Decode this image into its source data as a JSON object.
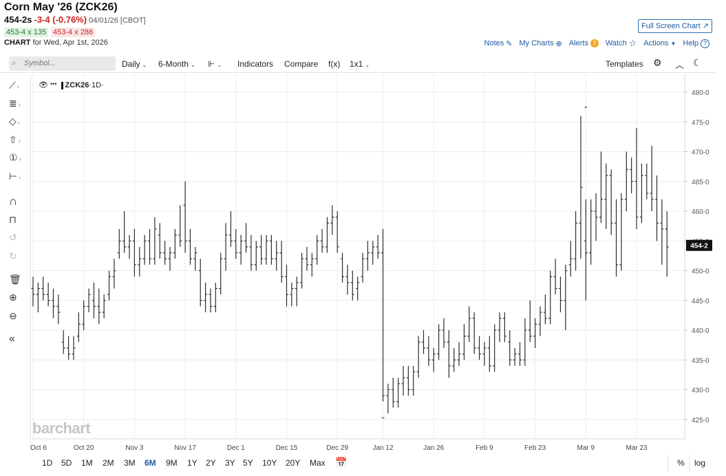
{
  "header": {
    "title": "Corn May '26 (ZCK26)",
    "last": "454-2s",
    "change": "-3-4 (-0.76%)",
    "date_exchange": "04/01/26 [CBOT]",
    "bid": "453-4 x 135",
    "ask": "453-4 x 286",
    "chart_label": "CHART",
    "chart_for": "for Wed, Apr 1st, 2026",
    "full_screen": "Full Screen Chart"
  },
  "toplinks": {
    "notes": "Notes",
    "my_charts": "My Charts",
    "alerts": "Alerts",
    "watch": "Watch",
    "actions": "Actions",
    "help": "Help"
  },
  "toolbar": {
    "symbol_placeholder": "Symbol...",
    "interval": "Daily",
    "range": "6-Month",
    "indicators": "Indicators",
    "compare": "Compare",
    "fx": "f(x)",
    "layout": "1x1",
    "templates": "Templates"
  },
  "legend": {
    "symbol": "ZCK26",
    "interval": "·1D·"
  },
  "periods": [
    "1D",
    "5D",
    "1M",
    "2M",
    "3M",
    "6M",
    "9M",
    "1Y",
    "2Y",
    "3Y",
    "5Y",
    "10Y",
    "20Y",
    "Max"
  ],
  "active_period": "6M",
  "bottom_right": {
    "percent": "%",
    "log": "log"
  },
  "watermark": "barchart",
  "colors": {
    "bar": "#2b2b2b",
    "accent": "#1d5aa3",
    "price_tag": "#111111",
    "down": "#cc1f1f",
    "up": "#1e7b2c"
  },
  "chart_data": {
    "type": "ohlc",
    "y_ticks": [
      425,
      430,
      435,
      440,
      445,
      450,
      455,
      460,
      465,
      470,
      475,
      480
    ],
    "y_tick_labels": [
      "425-0",
      "430-0",
      "435-0",
      "440-0",
      "445-0",
      "450-0",
      "455-0",
      "460-0",
      "465-0",
      "470-0",
      "475-0",
      "480-0"
    ],
    "ylim": [
      423,
      483
    ],
    "last_price_label": "454-2",
    "last_price": 454.25,
    "x_labels": [
      {
        "label": "Oct 6",
        "index": 0
      },
      {
        "label": "Oct 20",
        "index": 10
      },
      {
        "label": "Nov 3",
        "index": 20
      },
      {
        "label": "Nov 17",
        "index": 30
      },
      {
        "label": "Dec 1",
        "index": 40
      },
      {
        "label": "Dec 15",
        "index": 50
      },
      {
        "label": "Dec 29",
        "index": 60
      },
      {
        "label": "Jan 12",
        "index": 69
      },
      {
        "label": "Jan 26",
        "index": 79
      },
      {
        "label": "Feb 9",
        "index": 89
      },
      {
        "label": "Feb 23",
        "index": 99
      },
      {
        "label": "Mar 9",
        "index": 109
      },
      {
        "label": "Mar 23",
        "index": 119
      }
    ],
    "annotations": [
      {
        "text": "^",
        "index": 109,
        "price": 477
      },
      {
        "text": "v",
        "index": 69,
        "price": 425.6
      }
    ],
    "bars": [
      {
        "index": 0,
        "open": 447,
        "high": 449,
        "low": 444,
        "close": 446
      },
      {
        "index": 1,
        "open": 446,
        "high": 448,
        "low": 443,
        "close": 447
      },
      {
        "index": 2,
        "open": 447,
        "high": 449,
        "low": 445,
        "close": 446
      },
      {
        "index": 3,
        "open": 446,
        "high": 448,
        "low": 444,
        "close": 445
      },
      {
        "index": 4,
        "open": 445,
        "high": 447,
        "low": 442,
        "close": 444
      },
      {
        "index": 5,
        "open": 444,
        "high": 446,
        "low": 441,
        "close": 443
      },
      {
        "index": 6,
        "open": 438,
        "high": 440,
        "low": 436,
        "close": 437
      },
      {
        "index": 7,
        "open": 437,
        "high": 439,
        "low": 435,
        "close": 436
      },
      {
        "index": 8,
        "open": 436,
        "high": 439,
        "low": 435,
        "close": 437
      },
      {
        "index": 9,
        "open": 439,
        "high": 443,
        "low": 438,
        "close": 441
      },
      {
        "index": 10,
        "open": 441,
        "high": 445,
        "low": 440,
        "close": 444
      },
      {
        "index": 11,
        "open": 444,
        "high": 447,
        "low": 443,
        "close": 446
      },
      {
        "index": 12,
        "open": 445,
        "high": 448,
        "low": 442,
        "close": 444
      },
      {
        "index": 13,
        "open": 444,
        "high": 447,
        "low": 441,
        "close": 443
      },
      {
        "index": 14,
        "open": 443,
        "high": 446,
        "low": 442,
        "close": 445
      },
      {
        "index": 15,
        "open": 446,
        "high": 450,
        "low": 445,
        "close": 449
      },
      {
        "index": 16,
        "open": 449,
        "high": 452,
        "low": 447,
        "close": 450
      },
      {
        "index": 17,
        "open": 453,
        "high": 457,
        "low": 452,
        "close": 455
      },
      {
        "index": 18,
        "open": 455,
        "high": 460,
        "low": 453,
        "close": 454
      },
      {
        "index": 19,
        "open": 454,
        "high": 456,
        "low": 452,
        "close": 455
      },
      {
        "index": 20,
        "open": 455,
        "high": 457,
        "low": 449,
        "close": 451
      },
      {
        "index": 21,
        "open": 451,
        "high": 454,
        "low": 449,
        "close": 452
      },
      {
        "index": 22,
        "open": 452,
        "high": 456,
        "low": 451,
        "close": 455
      },
      {
        "index": 23,
        "open": 455,
        "high": 457,
        "low": 451,
        "close": 452
      },
      {
        "index": 24,
        "open": 452,
        "high": 459,
        "low": 451,
        "close": 457
      },
      {
        "index": 25,
        "open": 456,
        "high": 458,
        "low": 452,
        "close": 453
      },
      {
        "index": 26,
        "open": 453,
        "high": 455,
        "low": 451,
        "close": 452
      },
      {
        "index": 27,
        "open": 452,
        "high": 454,
        "low": 450,
        "close": 453
      },
      {
        "index": 28,
        "open": 453,
        "high": 457,
        "low": 452,
        "close": 456
      },
      {
        "index": 29,
        "open": 456,
        "high": 461,
        "low": 454,
        "close": 455
      },
      {
        "index": 30,
        "open": 461,
        "high": 465,
        "low": 453,
        "close": 455
      },
      {
        "index": 31,
        "open": 455,
        "high": 457,
        "low": 451,
        "close": 452
      },
      {
        "index": 32,
        "open": 452,
        "high": 454,
        "low": 450,
        "close": 453
      },
      {
        "index": 33,
        "open": 450,
        "high": 452,
        "low": 444,
        "close": 445
      },
      {
        "index": 34,
        "open": 445,
        "high": 448,
        "low": 443,
        "close": 446
      },
      {
        "index": 35,
        "open": 446,
        "high": 447,
        "low": 443,
        "close": 444
      },
      {
        "index": 36,
        "open": 444,
        "high": 448,
        "low": 443,
        "close": 447
      },
      {
        "index": 37,
        "open": 447,
        "high": 453,
        "low": 446,
        "close": 452
      },
      {
        "index": 38,
        "open": 452,
        "high": 458,
        "low": 450,
        "close": 456
      },
      {
        "index": 39,
        "open": 456,
        "high": 460,
        "low": 454,
        "close": 455
      },
      {
        "index": 40,
        "open": 455,
        "high": 457,
        "low": 452,
        "close": 453
      },
      {
        "index": 41,
        "open": 453,
        "high": 456,
        "low": 451,
        "close": 455
      },
      {
        "index": 42,
        "open": 455,
        "high": 458,
        "low": 453,
        "close": 454
      },
      {
        "index": 43,
        "open": 454,
        "high": 456,
        "low": 450,
        "close": 451
      },
      {
        "index": 44,
        "open": 451,
        "high": 455,
        "low": 450,
        "close": 454
      },
      {
        "index": 45,
        "open": 454,
        "high": 456,
        "low": 451,
        "close": 452
      },
      {
        "index": 46,
        "open": 452,
        "high": 456,
        "low": 451,
        "close": 455
      },
      {
        "index": 47,
        "open": 455,
        "high": 456,
        "low": 451,
        "close": 452
      },
      {
        "index": 48,
        "open": 452,
        "high": 455,
        "low": 450,
        "close": 453
      },
      {
        "index": 49,
        "open": 453,
        "high": 455,
        "low": 448,
        "close": 449
      },
      {
        "index": 50,
        "open": 449,
        "high": 451,
        "low": 444,
        "close": 446
      },
      {
        "index": 51,
        "open": 446,
        "high": 448,
        "low": 444,
        "close": 447
      },
      {
        "index": 52,
        "open": 447,
        "high": 449,
        "low": 444,
        "close": 448
      },
      {
        "index": 53,
        "open": 448,
        "high": 453,
        "low": 447,
        "close": 452
      },
      {
        "index": 54,
        "open": 452,
        "high": 454,
        "low": 450,
        "close": 451
      },
      {
        "index": 55,
        "open": 451,
        "high": 453,
        "low": 449,
        "close": 452
      },
      {
        "index": 56,
        "open": 452,
        "high": 456,
        "low": 451,
        "close": 455
      },
      {
        "index": 57,
        "open": 455,
        "high": 457,
        "low": 453,
        "close": 454
      },
      {
        "index": 58,
        "open": 454,
        "high": 459,
        "low": 453,
        "close": 458
      },
      {
        "index": 59,
        "open": 458,
        "high": 461,
        "low": 456,
        "close": 459
      },
      {
        "index": 60,
        "open": 459,
        "high": 460,
        "low": 453,
        "close": 454
      },
      {
        "index": 61,
        "open": 452,
        "high": 453,
        "low": 448,
        "close": 449
      },
      {
        "index": 62,
        "open": 449,
        "high": 451,
        "low": 446,
        "close": 448
      },
      {
        "index": 63,
        "open": 448,
        "high": 450,
        "low": 445,
        "close": 446
      },
      {
        "index": 64,
        "open": 447,
        "high": 449,
        "low": 445,
        "close": 448
      },
      {
        "index": 65,
        "open": 449,
        "high": 453,
        "low": 448,
        "close": 452
      },
      {
        "index": 66,
        "open": 452,
        "high": 455,
        "low": 450,
        "close": 453
      },
      {
        "index": 67,
        "open": 453,
        "high": 455,
        "low": 451,
        "close": 454
      },
      {
        "index": 68,
        "open": 454,
        "high": 456,
        "low": 452,
        "close": 453
      },
      {
        "index": 69,
        "open": 453,
        "high": 457,
        "low": 428,
        "close": 429
      },
      {
        "index": 70,
        "open": 429,
        "high": 431,
        "low": 426,
        "close": 430
      },
      {
        "index": 71,
        "open": 430,
        "high": 432,
        "low": 427,
        "close": 428
      },
      {
        "index": 72,
        "open": 428,
        "high": 432,
        "low": 427,
        "close": 431
      },
      {
        "index": 73,
        "open": 431,
        "high": 434,
        "low": 429,
        "close": 432
      },
      {
        "index": 74,
        "open": 432,
        "high": 434,
        "low": 429,
        "close": 430
      },
      {
        "index": 75,
        "open": 430,
        "high": 434,
        "low": 429,
        "close": 433
      },
      {
        "index": 76,
        "open": 433,
        "high": 439,
        "low": 432,
        "close": 438
      },
      {
        "index": 77,
        "open": 438,
        "high": 440,
        "low": 436,
        "close": 437
      },
      {
        "index": 78,
        "open": 437,
        "high": 439,
        "low": 434,
        "close": 435
      },
      {
        "index": 79,
        "open": 435,
        "high": 437,
        "low": 433,
        "close": 436
      },
      {
        "index": 80,
        "open": 436,
        "high": 441,
        "low": 435,
        "close": 440
      },
      {
        "index": 81,
        "open": 440,
        "high": 442,
        "low": 437,
        "close": 438
      },
      {
        "index": 82,
        "open": 438,
        "high": 440,
        "low": 432,
        "close": 434
      },
      {
        "index": 83,
        "open": 434,
        "high": 437,
        "low": 433,
        "close": 435
      },
      {
        "index": 84,
        "open": 435,
        "high": 438,
        "low": 434,
        "close": 436
      },
      {
        "index": 85,
        "open": 436,
        "high": 441,
        "low": 435,
        "close": 439
      },
      {
        "index": 86,
        "open": 439,
        "high": 444,
        "low": 438,
        "close": 442
      },
      {
        "index": 87,
        "open": 442,
        "high": 443,
        "low": 436,
        "close": 437
      },
      {
        "index": 88,
        "open": 437,
        "high": 439,
        "low": 435,
        "close": 436
      },
      {
        "index": 89,
        "open": 436,
        "high": 438,
        "low": 434,
        "close": 437
      },
      {
        "index": 90,
        "open": 437,
        "high": 439,
        "low": 433,
        "close": 434
      },
      {
        "index": 91,
        "open": 434,
        "high": 441,
        "low": 433,
        "close": 440
      },
      {
        "index": 92,
        "open": 440,
        "high": 443,
        "low": 438,
        "close": 442
      },
      {
        "index": 93,
        "open": 442,
        "high": 443,
        "low": 438,
        "close": 439
      },
      {
        "index": 94,
        "open": 438,
        "high": 440,
        "low": 434,
        "close": 435
      },
      {
        "index": 95,
        "open": 435,
        "high": 437,
        "low": 434,
        "close": 436
      },
      {
        "index": 96,
        "open": 436,
        "high": 438,
        "low": 434,
        "close": 435
      },
      {
        "index": 97,
        "open": 435,
        "high": 442,
        "low": 434,
        "close": 440
      },
      {
        "index": 98,
        "open": 440,
        "high": 445,
        "low": 438,
        "close": 439
      },
      {
        "index": 99,
        "open": 439,
        "high": 442,
        "low": 437,
        "close": 441
      },
      {
        "index": 100,
        "open": 441,
        "high": 444,
        "low": 439,
        "close": 443
      },
      {
        "index": 101,
        "open": 443,
        "high": 446,
        "low": 441,
        "close": 442
      },
      {
        "index": 102,
        "open": 442,
        "high": 450,
        "low": 441,
        "close": 449
      },
      {
        "index": 103,
        "open": 449,
        "high": 452,
        "low": 446,
        "close": 447
      },
      {
        "index": 104,
        "open": 447,
        "high": 449,
        "low": 443,
        "close": 445
      },
      {
        "index": 105,
        "open": 445,
        "high": 451,
        "low": 440,
        "close": 450
      },
      {
        "index": 106,
        "open": 451,
        "high": 455,
        "low": 449,
        "close": 452
      },
      {
        "index": 107,
        "open": 452,
        "high": 460,
        "low": 450,
        "close": 458
      },
      {
        "index": 108,
        "open": 458,
        "high": 476,
        "low": 452,
        "close": 464
      },
      {
        "index": 109,
        "open": 455,
        "high": 462,
        "low": 445,
        "close": 453
      },
      {
        "index": 110,
        "open": 453,
        "high": 462,
        "low": 451,
        "close": 460
      },
      {
        "index": 111,
        "open": 460,
        "high": 463,
        "low": 455,
        "close": 459
      },
      {
        "index": 112,
        "open": 459,
        "high": 470,
        "low": 458,
        "close": 462
      },
      {
        "index": 113,
        "open": 462,
        "high": 468,
        "low": 457,
        "close": 466
      },
      {
        "index": 114,
        "open": 466,
        "high": 467,
        "low": 456,
        "close": 458
      },
      {
        "index": 115,
        "open": 458,
        "high": 462,
        "low": 449,
        "close": 451
      },
      {
        "index": 116,
        "open": 451,
        "high": 463,
        "low": 450,
        "close": 462
      },
      {
        "index": 117,
        "open": 462,
        "high": 470,
        "low": 460,
        "close": 467
      },
      {
        "index": 118,
        "open": 467,
        "high": 469,
        "low": 463,
        "close": 465
      },
      {
        "index": 119,
        "open": 465,
        "high": 474,
        "low": 457,
        "close": 459
      },
      {
        "index": 120,
        "open": 459,
        "high": 468,
        "low": 458,
        "close": 466
      },
      {
        "index": 121,
        "open": 466,
        "high": 468,
        "low": 462,
        "close": 463
      },
      {
        "index": 122,
        "open": 463,
        "high": 471,
        "low": 460,
        "close": 462
      },
      {
        "index": 123,
        "open": 462,
        "high": 466,
        "low": 455,
        "close": 458
      },
      {
        "index": 124,
        "open": 458,
        "high": 462,
        "low": 451,
        "close": 457
      },
      {
        "index": 125,
        "open": 457,
        "high": 460,
        "low": 449,
        "close": 454
      }
    ]
  }
}
